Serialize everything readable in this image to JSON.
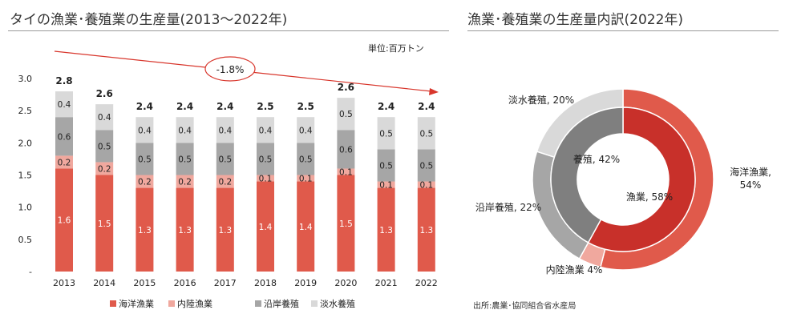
{
  "left_chart": {
    "title": "タイの漁業･養殖業の生産量(2013～2022年)",
    "unit_label": "単位:百万トン",
    "trend_label": "-1.8%"
  },
  "right_chart": {
    "title": "漁業･養殖業の生産量内訳(2022年)",
    "source": "出所:農業･協同組合省水産局"
  },
  "colors": {
    "marine": "#e05a4b",
    "inland": "#f0a89e",
    "coastal": "#a6a6a6",
    "freshwater": "#d9d9d9",
    "inner_fishing": "#c8302a",
    "inner_aqua": "#7f7f7f",
    "trend": "#d8362c"
  },
  "chart_data": [
    {
      "type": "bar",
      "stacked": true,
      "categories": [
        "2013",
        "2014",
        "2015",
        "2016",
        "2017",
        "2018",
        "2019",
        "2020",
        "2021",
        "2022"
      ],
      "series": [
        {
          "name": "海洋漁業",
          "values": [
            1.6,
            1.5,
            1.3,
            1.3,
            1.3,
            1.4,
            1.4,
            1.5,
            1.3,
            1.3
          ],
          "color": "#e05a4b"
        },
        {
          "name": "内陸漁業",
          "values": [
            0.2,
            0.2,
            0.2,
            0.2,
            0.2,
            0.1,
            0.1,
            0.1,
            0.1,
            0.1
          ],
          "color": "#f0a89e"
        },
        {
          "name": "沿岸養殖",
          "values": [
            0.6,
            0.5,
            0.5,
            0.5,
            0.5,
            0.5,
            0.5,
            0.6,
            0.5,
            0.5
          ],
          "color": "#a6a6a6"
        },
        {
          "name": "淡水養殖",
          "values": [
            0.4,
            0.4,
            0.4,
            0.4,
            0.4,
            0.4,
            0.4,
            0.5,
            0.5,
            0.5
          ],
          "color": "#d9d9d9"
        }
      ],
      "totals": [
        "2.8",
        "2.6",
        "2.4",
        "2.4",
        "2.4",
        "2.5",
        "2.5",
        "2.6",
        "2.4",
        "2.4"
      ],
      "y_ticks": [
        "-",
        "0.5",
        "1.0",
        "1.5",
        "2.0",
        "2.5",
        "3.0"
      ],
      "ylim": [
        0,
        3.0
      ],
      "legend_position": "bottom",
      "annotation": "-1.8%"
    },
    {
      "type": "pie",
      "donut": true,
      "outer_ring": {
        "slices": [
          {
            "label": "海洋漁業, 54%",
            "value": 54,
            "color": "#e05a4b"
          },
          {
            "label": "内陸漁業 4%",
            "value": 4,
            "color": "#f0a89e"
          },
          {
            "label": "沿岸養殖, 22%",
            "value": 22,
            "color": "#a6a6a6"
          },
          {
            "label": "淡水養殖, 20%",
            "value": 20,
            "color": "#d9d9d9"
          }
        ]
      },
      "inner_ring": {
        "slices": [
          {
            "label": "漁業, 58%",
            "value": 58,
            "color": "#c8302a"
          },
          {
            "label": "養殖, 42%",
            "value": 42,
            "color": "#7f7f7f"
          }
        ]
      }
    }
  ]
}
